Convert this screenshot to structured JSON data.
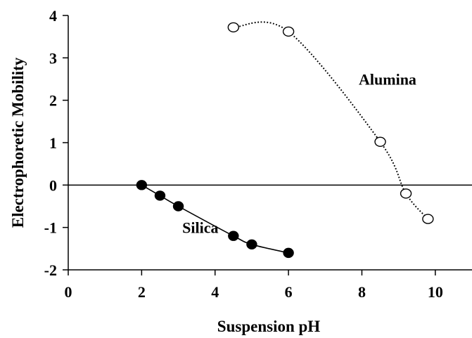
{
  "chart_data": {
    "type": "scatter",
    "title": "",
    "xlabel": "Suspension pH",
    "ylabel": "Electrophoretic Mobility",
    "xlim": [
      0,
      11
    ],
    "ylim": [
      -2,
      4
    ],
    "xticks": [
      0,
      2,
      4,
      6,
      8,
      10
    ],
    "yticks": [
      -2,
      -1,
      0,
      1,
      2,
      3,
      4
    ],
    "xtick_labels": [
      "0",
      "2",
      "4",
      "6",
      "8",
      "10"
    ],
    "ytick_labels": [
      "-2",
      "-1",
      "0",
      "1",
      "2",
      "3",
      "4"
    ],
    "zero_line": true,
    "grid": false,
    "legend": "none",
    "series": [
      {
        "name": "Silica",
        "marker": "filled-circle",
        "line_style": "solid",
        "color": "#000000",
        "x": [
          2.0,
          2.5,
          3.0,
          4.5,
          5.0,
          6.0
        ],
        "y": [
          0.0,
          -0.25,
          -0.5,
          -1.2,
          -1.4,
          -1.6
        ]
      },
      {
        "name": "Alumina",
        "marker": "open-circle",
        "line_style": "dotted",
        "color": "#000000",
        "x": [
          4.5,
          6.0,
          8.5,
          9.2,
          9.8
        ],
        "y": [
          3.72,
          3.62,
          1.02,
          -0.2,
          -0.8
        ]
      }
    ]
  }
}
